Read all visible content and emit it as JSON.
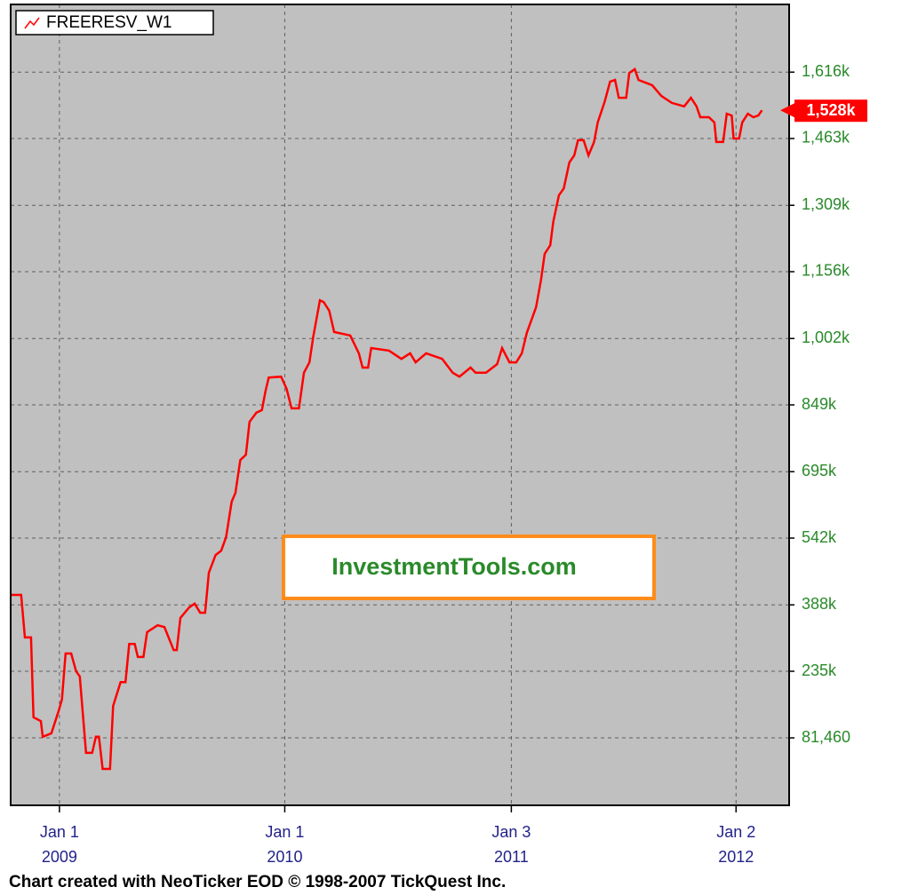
{
  "chart_data": {
    "type": "line",
    "series": [
      {
        "name": "FREERESV_W1",
        "color": "#ff0000",
        "values": [
          411000,
          411000,
          313000,
          313000,
          129000,
          120000,
          84000,
          92000,
          145000,
          170000,
          276000,
          276000,
          235000,
          223000,
          47000,
          47000,
          84000,
          84000,
          10000,
          10000,
          155000,
          210000,
          210000,
          298000,
          298000,
          268000,
          268000,
          325000,
          341000,
          337000,
          284000,
          284000,
          358000,
          382000,
          391000,
          370000,
          370000,
          462000,
          503000,
          513000,
          544000,
          626000,
          646000,
          722000,
          734000,
          810000,
          831000,
          837000,
          882000,
          912000,
          914000,
          886000,
          841000,
          841000,
          923000,
          947000,
          1005000,
          1090000,
          1086000,
          1066000,
          1017000,
          1009000,
          968000,
          935000,
          935000,
          980000,
          974000,
          955000,
          968000,
          947000,
          968000,
          955000,
          923000,
          914000,
          935000,
          923000,
          923000,
          943000,
          980000,
          947000,
          947000,
          968000,
          1015000,
          1074000,
          1136000,
          1197000,
          1217000,
          1271000,
          1332000,
          1348000,
          1408000,
          1424000,
          1459000,
          1459000,
          1424000,
          1455000,
          1500000,
          1547000,
          1594000,
          1598000,
          1557000,
          1557000,
          1614000,
          1623000,
          1598000,
          1586000,
          1561000,
          1545000,
          1537000,
          1557000,
          1537000,
          1512000,
          1512000,
          1500000,
          1455000,
          1455000,
          1520000,
          1516000,
          1463000,
          1463000,
          1500000,
          1520000,
          1512000,
          1516000,
          1528000
        ]
      }
    ],
    "x": [
      "2008-10-14",
      "2008-10-31",
      "2008-11-06",
      "2008-11-16",
      "2008-11-20",
      "2008-12-02",
      "2008-12-05",
      "2008-12-19",
      "2008-12-31",
      "2009-01-05",
      "2009-01-11",
      "2009-01-20",
      "2009-01-28",
      "2009-02-03",
      "2009-02-13",
      "2009-02-23",
      "2009-03-01",
      "2009-03-06",
      "2009-03-12",
      "2009-03-24",
      "2009-03-29",
      "2009-04-10",
      "2009-04-18",
      "2009-04-24",
      "2009-05-03",
      "2009-05-08",
      "2009-05-17",
      "2009-05-23",
      "2009-06-09",
      "2009-06-20",
      "2009-07-05",
      "2009-07-10",
      "2009-07-16",
      "2009-07-30",
      "2009-08-08",
      "2009-08-17",
      "2009-08-25",
      "2009-08-31",
      "2009-09-11",
      "2009-09-20",
      "2009-09-28",
      "2009-10-07",
      "2009-10-13",
      "2009-10-21",
      "2009-10-30",
      "2009-11-05",
      "2009-11-16",
      "2009-11-25",
      "2009-12-01",
      "2009-12-06",
      "2009-12-26",
      "2010-01-04",
      "2010-01-12",
      "2010-01-24",
      "2010-02-01",
      "2010-02-10",
      "2010-02-16",
      "2010-02-27",
      "2010-03-05",
      "2010-03-14",
      "2010-03-22",
      "2010-04-17",
      "2010-05-01",
      "2010-05-07",
      "2010-05-16",
      "2010-05-21",
      "2010-06-19",
      "2010-07-09",
      "2010-07-23",
      "2010-08-01",
      "2010-08-18",
      "2010-09-13",
      "2010-09-30",
      "2010-10-11",
      "2010-10-29",
      "2010-11-06",
      "2010-11-23",
      "2010-12-11",
      "2010-12-19",
      "2010-12-31",
      "2011-01-11",
      "2011-01-20",
      "2011-01-28",
      "2011-02-12",
      "2011-02-20",
      "2011-02-26",
      "2011-03-07",
      "2011-03-12",
      "2011-03-21",
      "2011-03-29",
      "2011-04-07",
      "2011-04-15",
      "2011-04-21",
      "2011-04-30",
      "2011-05-08",
      "2011-05-17",
      "2011-05-23",
      "2011-06-03",
      "2011-06-12",
      "2011-06-20",
      "2011-06-26",
      "2011-07-08",
      "2011-07-13",
      "2011-07-22",
      "2011-07-28",
      "2011-08-19",
      "2011-09-03",
      "2011-09-20",
      "2011-10-10",
      "2011-10-21",
      "2011-10-30",
      "2011-11-05",
      "2011-11-19",
      "2011-11-28",
      "2011-12-01",
      "2011-12-12",
      "2011-12-18",
      "2011-12-26",
      "2011-12-29",
      "2012-01-07",
      "2012-01-12",
      "2012-01-21",
      "2012-01-30",
      "2012-02-07",
      "2012-02-13"
    ],
    "xlim": [
      "2008-10-14",
      "2012-03-28"
    ],
    "xticks": [
      {
        "value": "2009-01-01",
        "label": "Jan 1",
        "sublabel": "2009"
      },
      {
        "value": "2010-01-01",
        "label": "Jan 1",
        "sublabel": "2010"
      },
      {
        "value": "2011-01-03",
        "label": "Jan 3",
        "sublabel": "2011"
      },
      {
        "value": "2012-01-02",
        "label": "Jan 2",
        "sublabel": "2012"
      }
    ],
    "ylim": [
      -74000,
      1772000
    ],
    "yticks": [
      {
        "value": 81460,
        "label": "81,460"
      },
      {
        "value": 235000,
        "label": "235k"
      },
      {
        "value": 388000,
        "label": "388k"
      },
      {
        "value": 542000,
        "label": "542k"
      },
      {
        "value": 695000,
        "label": "695k"
      },
      {
        "value": 849000,
        "label": "849k"
      },
      {
        "value": 1002000,
        "label": "1,002k"
      },
      {
        "value": 1156000,
        "label": "1,156k"
      },
      {
        "value": 1309000,
        "label": "1,309k"
      },
      {
        "value": 1463000,
        "label": "1,463k"
      },
      {
        "value": 1616000,
        "label": "1,616k"
      }
    ],
    "grid": true,
    "last_value": {
      "value": 1528000,
      "label": "1,528k"
    },
    "watermark": "InvestmentTools.com",
    "credit": "Chart created with NeoTicker EOD © 1998-2007 TickQuest Inc."
  }
}
